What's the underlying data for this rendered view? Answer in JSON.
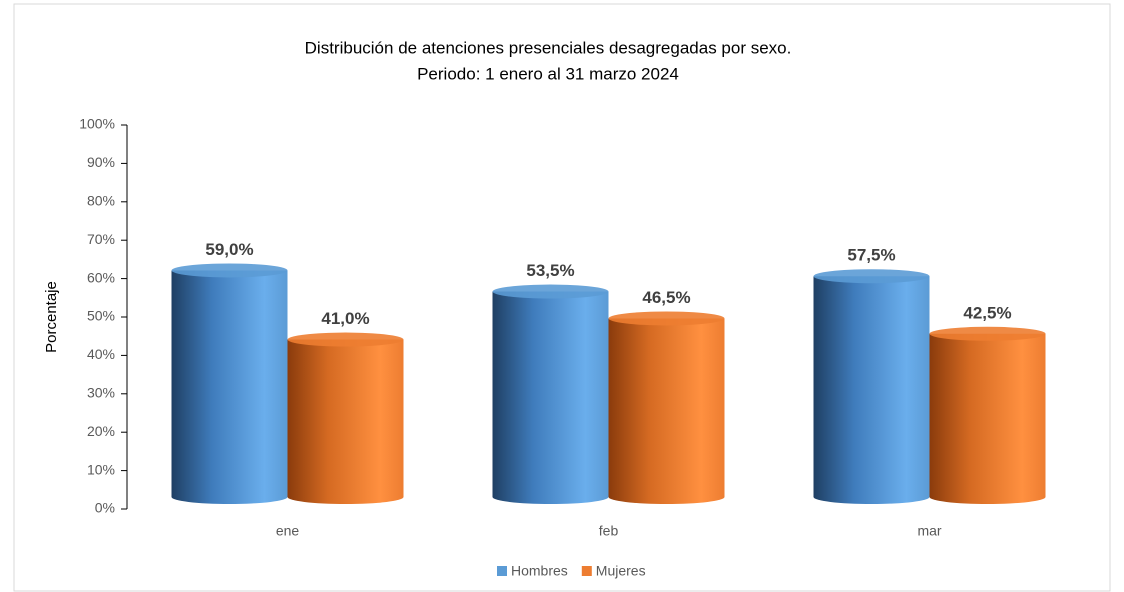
{
  "chart_data": {
    "type": "bar3d-cylinder",
    "title": [
      "Distribución de atenciones presenciales desagregadas por sexo.",
      "Periodo: 1 enero al 31 marzo 2024"
    ],
    "y_label": "Porcentaje",
    "categories": [
      "ene",
      "feb",
      "mar"
    ],
    "series": [
      {
        "name": "Hombres",
        "color": "#5b9bd5",
        "values": [
          59.0,
          53.5,
          57.5
        ],
        "value_labels": [
          "59,0%",
          "53,5%",
          "57,5%"
        ]
      },
      {
        "name": "Mujeres",
        "color": "#ed7d31",
        "values": [
          41.0,
          46.5,
          42.5
        ],
        "value_labels": [
          "41,0%",
          "46,5%",
          "42,5%"
        ]
      }
    ],
    "ylim": [
      0,
      100
    ],
    "yticks": [
      {
        "value": 0,
        "label": "0%"
      },
      {
        "value": 10,
        "label": "10%"
      },
      {
        "value": 20,
        "label": "20%"
      },
      {
        "value": 30,
        "label": "30%"
      },
      {
        "value": 40,
        "label": "40%"
      },
      {
        "value": 50,
        "label": "50%"
      },
      {
        "value": 60,
        "label": "60%"
      },
      {
        "value": 70,
        "label": "70%"
      },
      {
        "value": 80,
        "label": "80%"
      },
      {
        "value": 90,
        "label": "90%"
      },
      {
        "value": 100,
        "label": "100%"
      }
    ],
    "grid": false,
    "legend": "bottom"
  }
}
